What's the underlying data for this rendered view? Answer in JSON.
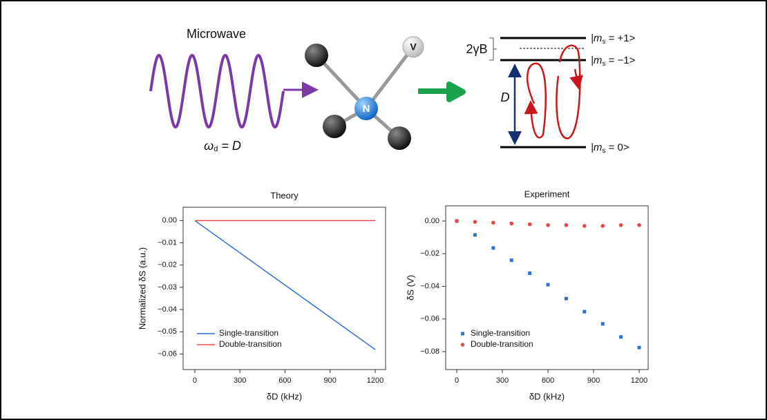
{
  "diagram": {
    "microwave_label": "Microwave",
    "drive_label": {
      "symbol": "ω",
      "subscript": "d",
      "suffix": " = D"
    },
    "atom_n": "N",
    "atom_v": "V",
    "splitting_label": "2γB",
    "gap_label": "D",
    "levels": [
      {
        "prefix": "|m",
        "subscript": "s",
        "suffix": " = +1>"
      },
      {
        "prefix": "|m",
        "subscript": "s",
        "suffix": " = −1>"
      },
      {
        "prefix": "|m",
        "subscript": "s",
        "suffix": " = 0>"
      }
    ]
  },
  "chart_data": [
    {
      "type": "line",
      "title": "Theory",
      "xlabel": "δD (kHz)",
      "ylabel": "Normalized δS (a.u.)",
      "xlim": [
        -78,
        1269
      ],
      "xticks": [
        0,
        300,
        600,
        900,
        1200
      ],
      "ylim": [
        -0.067,
        0.006
      ],
      "yticks": [
        {
          "value": 0,
          "label": "0.00"
        },
        {
          "value": -0.01,
          "label": "−0.01"
        },
        {
          "value": -0.02,
          "label": "−0.02"
        },
        {
          "value": -0.03,
          "label": "−0.03"
        },
        {
          "value": -0.04,
          "label": "−0.04"
        },
        {
          "value": -0.05,
          "label": "−0.05"
        },
        {
          "value": -0.06,
          "label": "−0.06"
        }
      ],
      "legend": "lower-left",
      "series": [
        {
          "name": "Single-transition",
          "color": "#2f6fd6",
          "x": [
            0,
            1200
          ],
          "values": [
            0,
            -0.058
          ]
        },
        {
          "name": "Double-transition",
          "color": "#e8474a",
          "x": [
            0,
            1200
          ],
          "values": [
            0,
            0
          ]
        }
      ]
    },
    {
      "type": "scatter",
      "title": "Experiment",
      "xlabel": "δD (kHz)",
      "ylabel": "δS (V)",
      "xlim": [
        -73,
        1259
      ],
      "xticks": [
        0,
        300,
        600,
        900,
        1200
      ],
      "ylim": [
        -0.091,
        0.0093
      ],
      "yticks": [
        {
          "value": 0,
          "label": "0.00"
        },
        {
          "value": -0.02,
          "label": "−0.02"
        },
        {
          "value": -0.04,
          "label": "−0.04"
        },
        {
          "value": -0.06,
          "label": "−0.06"
        },
        {
          "value": -0.08,
          "label": "−0.08"
        }
      ],
      "legend": "lower-left",
      "series": [
        {
          "name": "Single-transition",
          "color": "#2f6fd6",
          "marker": "square",
          "x": [
            0,
            120,
            240,
            360,
            480,
            600,
            720,
            840,
            960,
            1080,
            1200
          ],
          "values": [
            0,
            -0.0085,
            -0.0165,
            -0.024,
            -0.032,
            -0.039,
            -0.0475,
            -0.0555,
            -0.063,
            -0.071,
            -0.0775
          ]
        },
        {
          "name": "Double-transition",
          "color": "#e8474a",
          "marker": "circle",
          "x": [
            0,
            120,
            240,
            360,
            480,
            600,
            720,
            840,
            960,
            1080,
            1200
          ],
          "values": [
            0,
            -0.0005,
            -0.001,
            -0.0015,
            -0.002,
            -0.0025,
            -0.0025,
            -0.003,
            -0.003,
            -0.0025,
            -0.0025
          ]
        }
      ]
    }
  ]
}
